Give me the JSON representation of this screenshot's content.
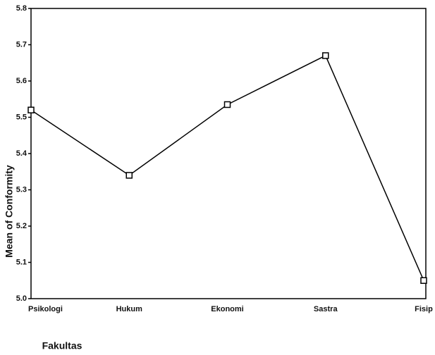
{
  "chart_data": {
    "type": "line",
    "x_label": "Fakultas",
    "y_label": "Mean of Conformity",
    "categories": [
      "Psikologi",
      "Hukum",
      "Ekonomi",
      "Sastra",
      "Fisip"
    ],
    "series": [
      {
        "name": "Mean of Conformity",
        "color": "#000000",
        "values": [
          5.52,
          5.34,
          5.535,
          5.67,
          5.05
        ]
      }
    ],
    "ylim": [
      5.0,
      5.8
    ],
    "yticks": [
      {
        "value": 5.0,
        "label": "5.0"
      },
      5.1,
      5.2,
      5.3,
      5.4,
      5.5,
      5.6,
      5.7,
      5.8
    ]
  }
}
